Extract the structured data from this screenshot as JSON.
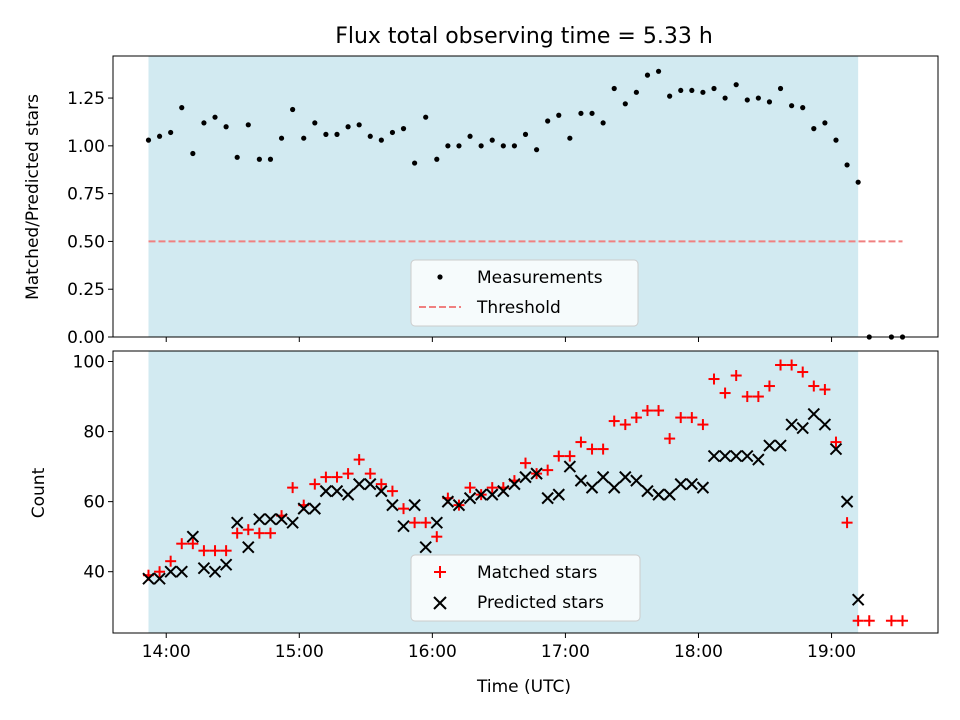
{
  "figure": {
    "title": "Flux total observing time = 5.33 h"
  },
  "colors": {
    "shade": "#add8e6",
    "threshold": "#f08080",
    "matched": "#ff0000",
    "predicted": "#000000",
    "measurement": "#000000"
  },
  "chart_data": [
    {
      "type": "scatter",
      "name": "ratio-panel",
      "ylabel": "Matched/Predicted stars",
      "xlabel": "",
      "ylim": [
        0,
        1.47
      ],
      "xlim": [
        "13:36",
        "19:48"
      ],
      "yticks": [
        {
          "v": 0,
          "label": "0.00"
        },
        {
          "v": 0.25,
          "label": "0.25"
        },
        {
          "v": 0.5,
          "label": "0.50"
        },
        {
          "v": 0.75,
          "label": "0.75"
        },
        {
          "v": 1.0,
          "label": "1.00"
        },
        {
          "v": 1.25,
          "label": "1.25"
        }
      ],
      "shaded_region": [
        "13:52",
        "19:12"
      ],
      "threshold": {
        "y": 0.5,
        "from": "13:52",
        "to": "19:32"
      },
      "legend": {
        "placement": "bottom-center",
        "entries": [
          "Measurements",
          "Threshold"
        ]
      },
      "series": [
        {
          "name": "Measurements",
          "marker": "dot",
          "points": [
            [
              "13:52",
              1.03
            ],
            [
              "13:57",
              1.05
            ],
            [
              "14:02",
              1.07
            ],
            [
              "14:07",
              1.2
            ],
            [
              "14:12",
              0.96
            ],
            [
              "14:17",
              1.12
            ],
            [
              "14:22",
              1.15
            ],
            [
              "14:27",
              1.1
            ],
            [
              "14:32",
              0.94
            ],
            [
              "14:37",
              1.11
            ],
            [
              "14:42",
              0.93
            ],
            [
              "14:47",
              0.93
            ],
            [
              "14:52",
              1.04
            ],
            [
              "14:57",
              1.19
            ],
            [
              "15:02",
              1.04
            ],
            [
              "15:07",
              1.12
            ],
            [
              "15:12",
              1.06
            ],
            [
              "15:17",
              1.06
            ],
            [
              "15:22",
              1.1
            ],
            [
              "15:27",
              1.11
            ],
            [
              "15:32",
              1.05
            ],
            [
              "15:37",
              1.03
            ],
            [
              "15:42",
              1.07
            ],
            [
              "15:47",
              1.09
            ],
            [
              "15:52",
              0.91
            ],
            [
              "15:57",
              1.15
            ],
            [
              "16:02",
              0.93
            ],
            [
              "16:07",
              1.0
            ],
            [
              "16:12",
              1.0
            ],
            [
              "16:17",
              1.05
            ],
            [
              "16:22",
              1.0
            ],
            [
              "16:27",
              1.03
            ],
            [
              "16:32",
              1.0
            ],
            [
              "16:37",
              1.0
            ],
            [
              "16:42",
              1.06
            ],
            [
              "16:47",
              0.98
            ],
            [
              "16:52",
              1.13
            ],
            [
              "16:57",
              1.16
            ],
            [
              "17:02",
              1.04
            ],
            [
              "17:07",
              1.17
            ],
            [
              "17:12",
              1.17
            ],
            [
              "17:17",
              1.12
            ],
            [
              "17:22",
              1.3
            ],
            [
              "17:27",
              1.22
            ],
            [
              "17:32",
              1.28
            ],
            [
              "17:37",
              1.37
            ],
            [
              "17:42",
              1.39
            ],
            [
              "17:47",
              1.26
            ],
            [
              "17:52",
              1.29
            ],
            [
              "17:57",
              1.29
            ],
            [
              "18:02",
              1.28
            ],
            [
              "18:07",
              1.3
            ],
            [
              "18:12",
              1.25
            ],
            [
              "18:17",
              1.32
            ],
            [
              "18:22",
              1.24
            ],
            [
              "18:27",
              1.25
            ],
            [
              "18:32",
              1.23
            ],
            [
              "18:37",
              1.3
            ],
            [
              "18:42",
              1.21
            ],
            [
              "18:47",
              1.2
            ],
            [
              "18:52",
              1.09
            ],
            [
              "18:57",
              1.12
            ],
            [
              "19:02",
              1.03
            ],
            [
              "19:07",
              0.9
            ],
            [
              "19:12",
              0.81
            ],
            [
              "19:17",
              0.0
            ],
            [
              "19:27",
              0.0
            ],
            [
              "19:32",
              0.0
            ]
          ]
        }
      ]
    },
    {
      "type": "scatter",
      "name": "count-panel",
      "ylabel": "Count",
      "xlabel": "Time (UTC)",
      "ylim": [
        22.5,
        103
      ],
      "xlim": [
        "13:36",
        "19:48"
      ],
      "xticks": [
        "14:00",
        "15:00",
        "16:00",
        "17:00",
        "18:00",
        "19:00"
      ],
      "yticks": [
        {
          "v": 40,
          "label": "40"
        },
        {
          "v": 60,
          "label": "60"
        },
        {
          "v": 80,
          "label": "80"
        },
        {
          "v": 100,
          "label": "100"
        }
      ],
      "shaded_region": [
        "13:52",
        "19:12"
      ],
      "legend": {
        "placement": "bottom-center",
        "entries": [
          "Matched stars",
          "Predicted stars"
        ]
      },
      "series": [
        {
          "name": "Matched stars",
          "marker": "plus",
          "points": [
            [
              "13:52",
              39
            ],
            [
              "13:57",
              40
            ],
            [
              "14:02",
              43
            ],
            [
              "14:07",
              48
            ],
            [
              "14:12",
              48
            ],
            [
              "14:17",
              46
            ],
            [
              "14:22",
              46
            ],
            [
              "14:27",
              46
            ],
            [
              "14:32",
              51
            ],
            [
              "14:37",
              52
            ],
            [
              "14:42",
              51
            ],
            [
              "14:47",
              51
            ],
            [
              "14:52",
              56
            ],
            [
              "14:57",
              64
            ],
            [
              "15:02",
              59
            ],
            [
              "15:07",
              65
            ],
            [
              "15:12",
              67
            ],
            [
              "15:17",
              67
            ],
            [
              "15:22",
              68
            ],
            [
              "15:27",
              72
            ],
            [
              "15:32",
              68
            ],
            [
              "15:37",
              65
            ],
            [
              "15:42",
              63
            ],
            [
              "15:47",
              58
            ],
            [
              "15:52",
              54
            ],
            [
              "15:57",
              54
            ],
            [
              "16:02",
              50
            ],
            [
              "16:07",
              61
            ],
            [
              "16:12",
              59
            ],
            [
              "16:17",
              64
            ],
            [
              "16:22",
              62
            ],
            [
              "16:27",
              64
            ],
            [
              "16:32",
              64
            ],
            [
              "16:37",
              66
            ],
            [
              "16:42",
              71
            ],
            [
              "16:47",
              68
            ],
            [
              "16:52",
              69
            ],
            [
              "16:57",
              73
            ],
            [
              "17:02",
              73
            ],
            [
              "17:07",
              77
            ],
            [
              "17:12",
              75
            ],
            [
              "17:17",
              75
            ],
            [
              "17:22",
              83
            ],
            [
              "17:27",
              82
            ],
            [
              "17:32",
              84
            ],
            [
              "17:37",
              86
            ],
            [
              "17:42",
              86
            ],
            [
              "17:47",
              78
            ],
            [
              "17:52",
              84
            ],
            [
              "17:57",
              84
            ],
            [
              "18:02",
              82
            ],
            [
              "18:07",
              95
            ],
            [
              "18:12",
              91
            ],
            [
              "18:17",
              96
            ],
            [
              "18:22",
              90
            ],
            [
              "18:27",
              90
            ],
            [
              "18:32",
              93
            ],
            [
              "18:37",
              99
            ],
            [
              "18:42",
              99
            ],
            [
              "18:47",
              97
            ],
            [
              "18:52",
              93
            ],
            [
              "18:57",
              92
            ],
            [
              "19:02",
              77
            ],
            [
              "19:07",
              54
            ],
            [
              "19:12",
              26
            ],
            [
              "19:17",
              26
            ],
            [
              "19:27",
              26
            ],
            [
              "19:32",
              26
            ]
          ]
        },
        {
          "name": "Predicted stars",
          "marker": "cross",
          "points": [
            [
              "13:52",
              38
            ],
            [
              "13:57",
              38
            ],
            [
              "14:02",
              40
            ],
            [
              "14:07",
              40
            ],
            [
              "14:12",
              50
            ],
            [
              "14:17",
              41
            ],
            [
              "14:22",
              40
            ],
            [
              "14:27",
              42
            ],
            [
              "14:32",
              54
            ],
            [
              "14:37",
              47
            ],
            [
              "14:42",
              55
            ],
            [
              "14:47",
              55
            ],
            [
              "14:52",
              55
            ],
            [
              "14:57",
              54
            ],
            [
              "15:02",
              58
            ],
            [
              "15:07",
              58
            ],
            [
              "15:12",
              63
            ],
            [
              "15:17",
              63
            ],
            [
              "15:22",
              62
            ],
            [
              "15:27",
              65
            ],
            [
              "15:32",
              65
            ],
            [
              "15:37",
              63
            ],
            [
              "15:42",
              59
            ],
            [
              "15:47",
              53
            ],
            [
              "15:52",
              59
            ],
            [
              "15:57",
              47
            ],
            [
              "16:02",
              54
            ],
            [
              "16:07",
              60
            ],
            [
              "16:12",
              59
            ],
            [
              "16:17",
              61
            ],
            [
              "16:22",
              62
            ],
            [
              "16:27",
              62
            ],
            [
              "16:32",
              63
            ],
            [
              "16:37",
              65
            ],
            [
              "16:42",
              67
            ],
            [
              "16:47",
              68
            ],
            [
              "16:52",
              61
            ],
            [
              "16:57",
              62
            ],
            [
              "17:02",
              70
            ],
            [
              "17:07",
              66
            ],
            [
              "17:12",
              64
            ],
            [
              "17:17",
              67
            ],
            [
              "17:22",
              64
            ],
            [
              "17:27",
              67
            ],
            [
              "17:32",
              66
            ],
            [
              "17:37",
              63
            ],
            [
              "17:42",
              62
            ],
            [
              "17:47",
              62
            ],
            [
              "17:52",
              65
            ],
            [
              "17:57",
              65
            ],
            [
              "18:02",
              64
            ],
            [
              "18:07",
              73
            ],
            [
              "18:12",
              73
            ],
            [
              "18:17",
              73
            ],
            [
              "18:22",
              73
            ],
            [
              "18:27",
              72
            ],
            [
              "18:32",
              76
            ],
            [
              "18:37",
              76
            ],
            [
              "18:42",
              82
            ],
            [
              "18:47",
              81
            ],
            [
              "18:52",
              85
            ],
            [
              "18:57",
              82
            ],
            [
              "19:02",
              75
            ],
            [
              "19:07",
              60
            ],
            [
              "19:12",
              32
            ]
          ]
        }
      ]
    }
  ]
}
